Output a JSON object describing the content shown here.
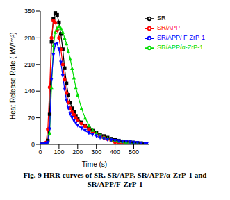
{
  "chart_data": {
    "type": "line",
    "title": "Fig. 9 HRR curves of SR, SR/APP, SR/APP/α-ZrP-1 and SR/APP/F-ZrP-1",
    "x_label": "Time (s)",
    "y_label": "Heat Release Rate ( kW/m²)",
    "x": [
      0,
      10,
      20,
      30,
      40,
      50,
      60,
      70,
      80,
      90,
      100,
      110,
      120,
      130,
      140,
      150,
      160,
      170,
      180,
      190,
      200,
      220,
      240,
      260,
      280,
      300,
      320,
      340,
      360,
      380,
      400,
      420,
      440,
      460,
      480,
      500,
      520,
      540,
      560,
      570
    ],
    "xlim": [
      0,
      580
    ],
    "xticks": [
      0,
      100,
      200,
      300,
      400,
      500
    ],
    "ylim": [
      0,
      350
    ],
    "yticks": [
      0,
      70,
      140,
      210,
      280,
      350
    ],
    "legend": "upper right",
    "series": [
      {
        "name": "SR",
        "color": "#000000",
        "marker": "square",
        "values": [
          0,
          0,
          0,
          2,
          10,
          80,
          270,
          330,
          345,
          340,
          320,
          290,
          250,
          200,
          160,
          130,
          110,
          95,
          85,
          75,
          68,
          58,
          50,
          42,
          36,
          30,
          26,
          22,
          18,
          15,
          12,
          10,
          8,
          7,
          6,
          5,
          4,
          3,
          2,
          null
        ]
      },
      {
        "name": "SR/APP",
        "color": "#ff0000",
        "marker": "circle",
        "values": [
          0,
          0,
          0,
          5,
          40,
          150,
          280,
          325,
          320,
          300,
          280,
          250,
          210,
          170,
          135,
          110,
          95,
          85,
          78,
          70,
          63,
          55,
          48,
          40,
          33,
          27,
          22,
          18,
          14,
          10,
          6,
          3,
          2,
          null,
          null,
          null,
          null,
          null,
          null,
          null
        ]
      },
      {
        "name": "SR/APP/α-ZrP-1",
        "color": "#00dd00",
        "marker": "triangle-up",
        "values": [
          0,
          0,
          0,
          2,
          5,
          30,
          150,
          260,
          295,
          305,
          310,
          305,
          295,
          280,
          265,
          245,
          225,
          200,
          175,
          150,
          130,
          95,
          70,
          50,
          38,
          30,
          24,
          20,
          16,
          13,
          11,
          9,
          8,
          7,
          6,
          5,
          4,
          3,
          3,
          2
        ]
      },
      {
        "name": "SR/APP/ F-ZrP-1",
        "color": "#0000ff",
        "marker": "triangle-down",
        "values": [
          0,
          0,
          0,
          2,
          5,
          40,
          170,
          235,
          262,
          265,
          250,
          215,
          180,
          145,
          115,
          95,
          80,
          70,
          62,
          56,
          50,
          42,
          36,
          30,
          26,
          22,
          18,
          15,
          13,
          11,
          10,
          9,
          8,
          7,
          6,
          5,
          4,
          3,
          2,
          1
        ]
      }
    ]
  }
}
